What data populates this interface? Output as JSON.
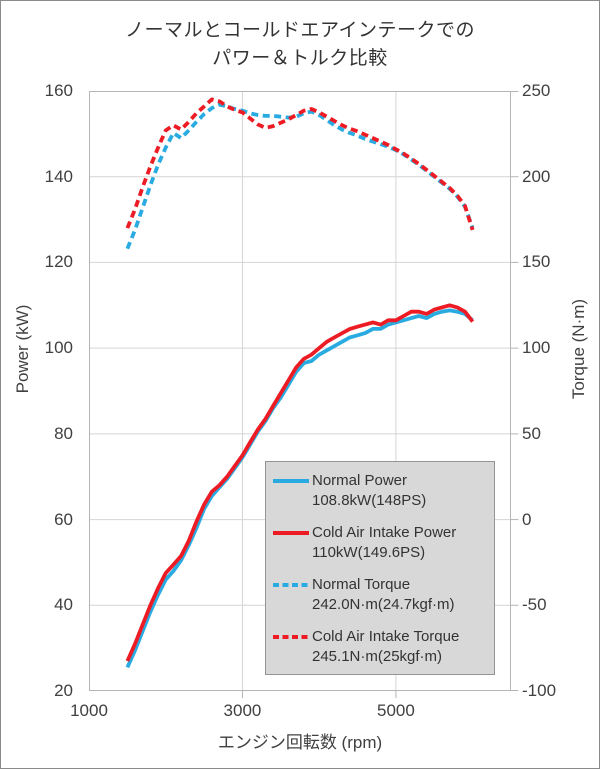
{
  "figure": {
    "background": "#ffffff",
    "border_color": "#8a8a8a"
  },
  "chart_data": {
    "type": "line",
    "title_line1": "ノーマルとコールドエアインテークでの",
    "title_line2": "パワー＆トルク比較",
    "xlabel": "エンジン回転数 (rpm)",
    "ylabel_left": "Power (kW)",
    "ylabel_right": "Torque (N·m)",
    "legend_position": "bottom-right",
    "grid": "major-only",
    "colors": {
      "normal": "#29abe2",
      "cold_air": "#ed1c24",
      "gridline": "#d4d4d4",
      "axis_border": "#b5b5b5",
      "tick": "#b5b5b5",
      "legend_bg": "#d8d8d8",
      "legend_border": "#949494",
      "text": "#333333",
      "tick_text": "#404040"
    },
    "x_axis": {
      "min": 1000,
      "max": 6500,
      "ticks": [
        1000,
        3000,
        5000
      ],
      "gridlines": [
        3000,
        5000
      ]
    },
    "y_left": {
      "min": 20,
      "max": 160,
      "ticks": [
        160,
        140,
        120,
        100,
        80,
        60,
        40,
        20
      ]
    },
    "y_right": {
      "min": -100,
      "max": 250,
      "ticks": [
        250,
        200,
        150,
        100,
        50,
        0,
        -50,
        -100
      ]
    },
    "rpm": [
      1500,
      1600,
      1700,
      1800,
      1900,
      2000,
      2100,
      2200,
      2300,
      2400,
      2500,
      2600,
      2700,
      2800,
      2900,
      3000,
      3100,
      3200,
      3300,
      3400,
      3500,
      3600,
      3700,
      3800,
      3900,
      4000,
      4100,
      4200,
      4300,
      4400,
      4500,
      4600,
      4700,
      4800,
      4900,
      5000,
      5100,
      5200,
      5300,
      5400,
      5500,
      5600,
      5700,
      5800,
      5900,
      6000
    ],
    "series": [
      {
        "id": "normal-power",
        "name": "Normal Power",
        "value_label": "108.8kW(148PS)",
        "axis": "left",
        "color": "#29abe2",
        "dashed": false,
        "values": [
          25.5,
          29.5,
          34,
          38.5,
          42.5,
          46,
          48,
          50.5,
          54,
          58,
          62.5,
          65.5,
          67.5,
          69.5,
          72,
          74.5,
          77.5,
          80.5,
          83,
          86,
          88.5,
          91.5,
          94.5,
          96.5,
          97,
          98.5,
          99.5,
          100.5,
          101.5,
          102.5,
          103,
          103.5,
          104.5,
          104.5,
          105.5,
          106,
          106.5,
          107,
          107.5,
          107,
          108,
          108.5,
          108.8,
          108.5,
          108,
          106.5
        ]
      },
      {
        "id": "cold-air-intake-power",
        "name": "Cold Air Intake Power",
        "value_label": "110kW(149.6PS)",
        "axis": "left",
        "color": "#ed1c24",
        "dashed": false,
        "values": [
          27,
          31,
          35.5,
          40,
          44,
          47.5,
          49.5,
          51.5,
          55,
          59.5,
          63.5,
          66.5,
          68,
          70,
          72.5,
          75,
          78,
          81,
          83.5,
          86.5,
          89.5,
          92.5,
          95.5,
          97.5,
          98.5,
          100,
          101.5,
          102.5,
          103.5,
          104.5,
          105,
          105.5,
          106,
          105.5,
          106.5,
          106.5,
          107.5,
          108.5,
          108.5,
          108,
          109,
          109.5,
          110,
          109.5,
          108.5,
          106.2
        ]
      },
      {
        "id": "normal-torque",
        "name": "Normal Torque",
        "value_label": "242.0N·m(24.7kgf·m)",
        "axis": "right",
        "color": "#29abe2",
        "dashed": true,
        "values": [
          158,
          169,
          182,
          195,
          207,
          217,
          225.5,
          222.5,
          227,
          232,
          236.5,
          240,
          242,
          241,
          239.5,
          238.5,
          237,
          236,
          235.5,
          235.5,
          235,
          234.5,
          235,
          237,
          238,
          236,
          233,
          230,
          227.5,
          225.5,
          224,
          222,
          220.5,
          219,
          217.5,
          215.5,
          213,
          210,
          207,
          203.5,
          200,
          196.5,
          193,
          188.5,
          182.5,
          170
        ]
      },
      {
        "id": "cold-air-intake-torque",
        "name": "Cold Air Intake Torque",
        "value_label": "245.1N·m(25kgf·m)",
        "axis": "right",
        "color": "#ed1c24",
        "dashed": true,
        "values": [
          170,
          181,
          194,
          206,
          217,
          227,
          230,
          227.5,
          232,
          237,
          241,
          245.1,
          244,
          241,
          239,
          237.5,
          234,
          230.5,
          228.5,
          229.5,
          231.5,
          233.5,
          236,
          238.5,
          239.5,
          237.5,
          235,
          232.5,
          230,
          228,
          226.5,
          224.5,
          222.5,
          220.5,
          218.5,
          216,
          213.5,
          210.5,
          207.5,
          204,
          200.5,
          197,
          193.5,
          189,
          183,
          169
        ]
      }
    ]
  }
}
